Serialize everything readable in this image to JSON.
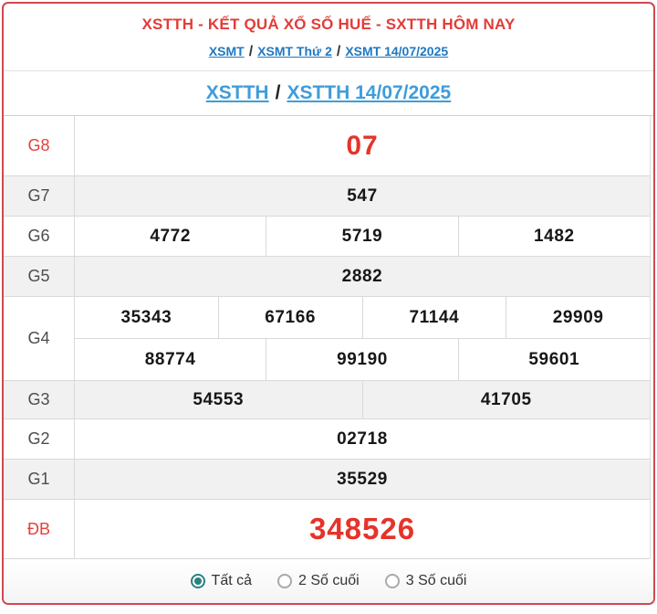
{
  "header": {
    "title": "XSTTH - KẾT QUẢ XỔ SỐ HUẾ - SXTTH HÔM NAY",
    "separator": "/",
    "breadcrumb": [
      {
        "label": "XSMT"
      },
      {
        "label": "XSMT Thứ 2"
      },
      {
        "label": "XSMT 14/07/2025"
      }
    ],
    "subheader": [
      {
        "label": "XSTTH"
      },
      {
        "label": "XSTTH 14/07/2025"
      }
    ]
  },
  "results": {
    "rows": [
      {
        "label": "G8",
        "groups": [
          [
            "07"
          ]
        ]
      },
      {
        "label": "G7",
        "groups": [
          [
            "547"
          ]
        ]
      },
      {
        "label": "G6",
        "groups": [
          [
            "4772",
            "5719",
            "1482"
          ]
        ]
      },
      {
        "label": "G5",
        "groups": [
          [
            "2882"
          ]
        ]
      },
      {
        "label": "G4",
        "groups": [
          [
            "35343",
            "67166",
            "71144",
            "29909"
          ],
          [
            "88774",
            "99190",
            "59601"
          ]
        ]
      },
      {
        "label": "G3",
        "groups": [
          [
            "54553",
            "41705"
          ]
        ]
      },
      {
        "label": "G2",
        "groups": [
          [
            "02718"
          ]
        ]
      },
      {
        "label": "G1",
        "groups": [
          [
            "35529"
          ]
        ]
      },
      {
        "label": "ĐB",
        "groups": [
          [
            "348526"
          ]
        ]
      }
    ]
  },
  "filters": {
    "options": [
      {
        "label": "Tất cả",
        "selected": true
      },
      {
        "label": "2 Số cuối",
        "selected": false
      },
      {
        "label": "3 Số cuối",
        "selected": false
      }
    ]
  },
  "colors": {
    "accent_red": "#e63329",
    "border_red": "#d0494e",
    "link_blue": "#1f78c1",
    "link_blue_light": "#3f9cdb",
    "row_alt_bg": "#f1f1f1",
    "radio_teal": "#2a8181"
  }
}
